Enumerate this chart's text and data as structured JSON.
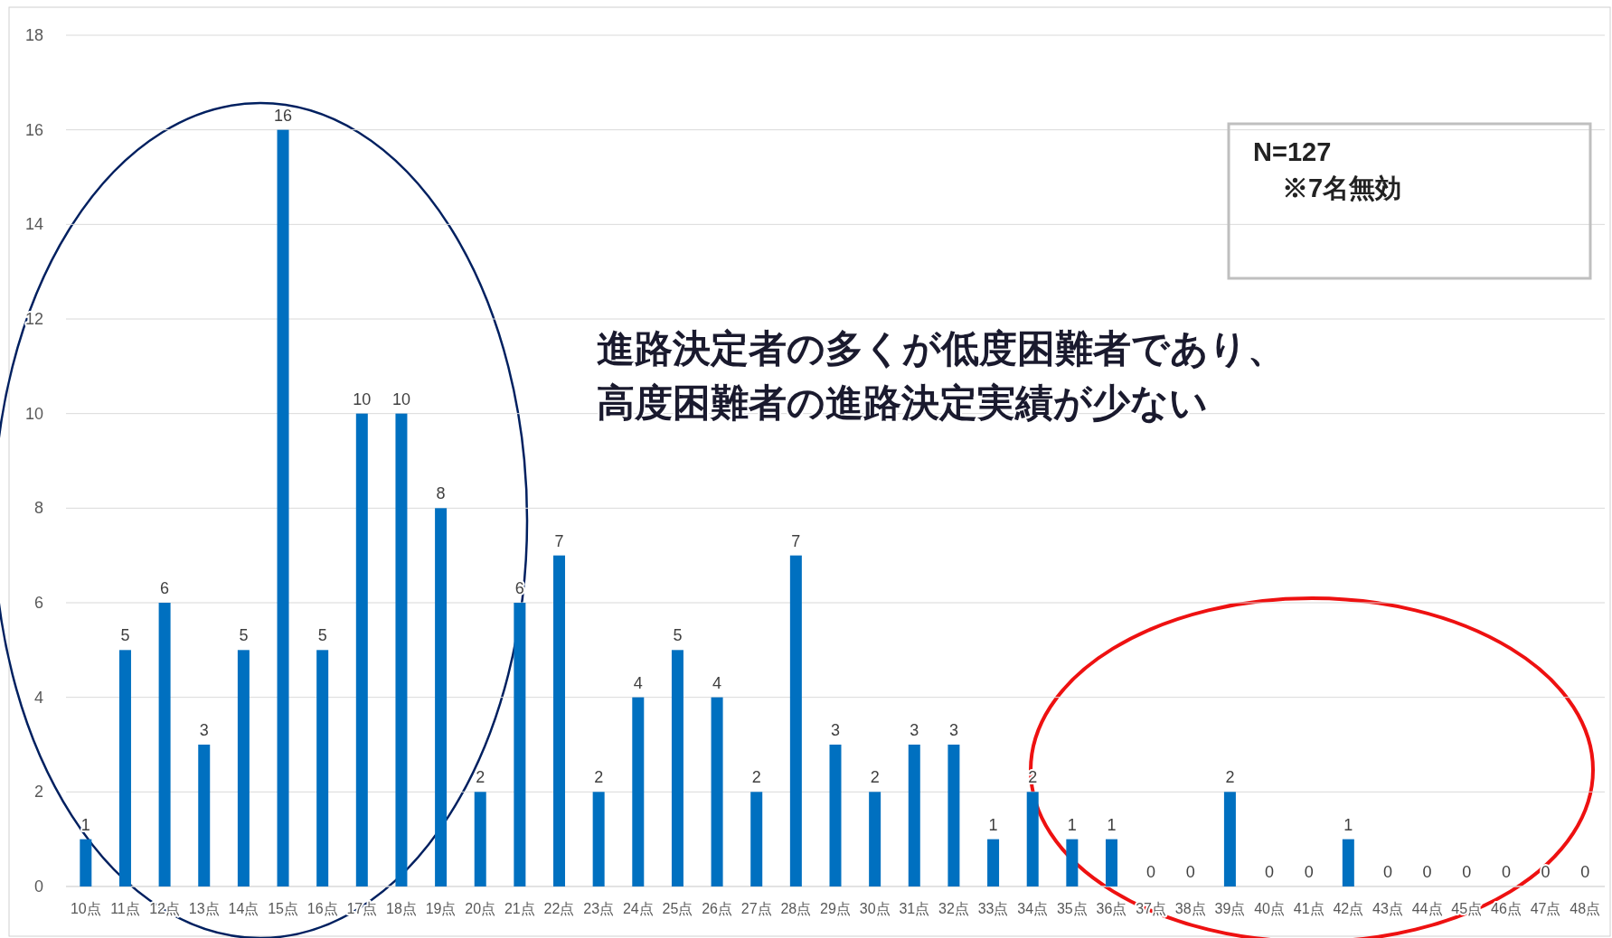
{
  "chart_data": {
    "type": "bar",
    "categories": [
      "10点",
      "11点",
      "12点",
      "13点",
      "14点",
      "15点",
      "16点",
      "17点",
      "18点",
      "19点",
      "20点",
      "21点",
      "22点",
      "23点",
      "24点",
      "25点",
      "26点",
      "27点",
      "28点",
      "29点",
      "30点",
      "31点",
      "32点",
      "33点",
      "34点",
      "35点",
      "36点",
      "37点",
      "38点",
      "39点",
      "40点",
      "41点",
      "42点",
      "43点",
      "44点",
      "45点",
      "46点",
      "47点",
      "48点"
    ],
    "values": [
      1,
      5,
      6,
      3,
      5,
      16,
      5,
      10,
      10,
      8,
      2,
      6,
      7,
      2,
      4,
      5,
      4,
      2,
      7,
      3,
      2,
      3,
      3,
      1,
      2,
      1,
      1,
      0,
      0,
      2,
      0,
      0,
      1,
      0,
      0,
      0,
      0,
      0,
      0
    ],
    "color": "#0070c0",
    "ylim": [
      0,
      18
    ],
    "yticks": [
      0,
      2,
      4,
      6,
      8,
      10,
      12,
      14,
      16,
      18
    ],
    "grid": "y",
    "data_labels": true,
    "annotations": [
      "N=127",
      "※7名無効",
      "進路決定者の多くが低度困難者であり、",
      "高度困難者の進路決定実績が少ない"
    ]
  }
}
